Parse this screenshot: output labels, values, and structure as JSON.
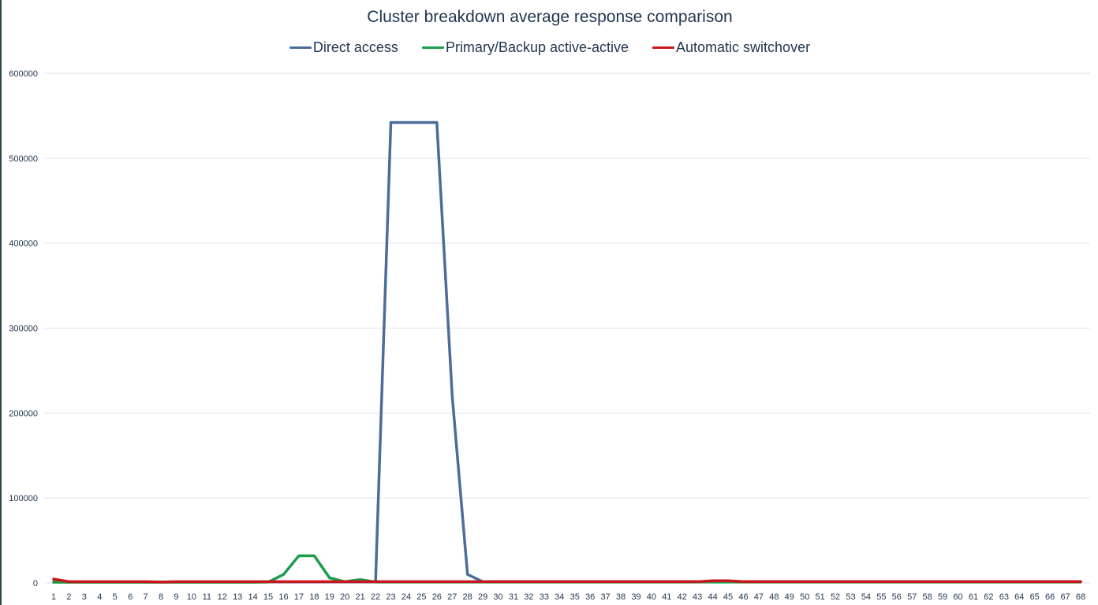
{
  "chart_data": {
    "type": "line",
    "title": "Cluster breakdown average response comparison",
    "xlabel": "",
    "ylabel": "",
    "ylim": [
      0,
      600000
    ],
    "yticks": [
      "0",
      "100000",
      "200000",
      "300000",
      "400000",
      "500000",
      "600000"
    ],
    "x": [
      1,
      2,
      3,
      4,
      5,
      6,
      7,
      8,
      9,
      10,
      11,
      12,
      13,
      14,
      15,
      16,
      17,
      18,
      19,
      20,
      21,
      22,
      23,
      24,
      25,
      26,
      27,
      28,
      29,
      30,
      31,
      32,
      33,
      34,
      35,
      36,
      37,
      38,
      39,
      40,
      41,
      42,
      43,
      44,
      45,
      46,
      47,
      48,
      49,
      50,
      51,
      52,
      53,
      54,
      55,
      56,
      57,
      58,
      59,
      60,
      61,
      62,
      63,
      64,
      65,
      66,
      67,
      68
    ],
    "grid": true,
    "legend_position": "top",
    "series": [
      {
        "name": "Direct access",
        "color": "#4a6d99",
        "values": [
          1500,
          1200,
          1200,
          1200,
          1200,
          1200,
          1200,
          1200,
          1200,
          1200,
          1200,
          1200,
          1200,
          1200,
          1200,
          1200,
          1200,
          1200,
          1200,
          1200,
          1200,
          1200,
          542000,
          542000,
          542000,
          542000,
          220000,
          10000,
          1500,
          1500,
          1500,
          1500,
          1500,
          1500,
          1500,
          1500,
          1500,
          1500,
          1500,
          1500,
          1500,
          1500,
          1500,
          1500,
          1500,
          1500,
          1500,
          1500,
          1500,
          1500,
          1500,
          1500,
          1500,
          1500,
          1500,
          1500,
          1500,
          1500,
          1500,
          1500,
          1500,
          1500,
          1500,
          1500,
          1500,
          1500,
          1500,
          1500
        ]
      },
      {
        "name": "Primary/Backup active-active",
        "color": "#1a9e4a",
        "values": [
          800,
          800,
          800,
          800,
          800,
          800,
          800,
          800,
          800,
          800,
          800,
          800,
          800,
          800,
          1000,
          10000,
          32000,
          32000,
          6000,
          1500,
          4000,
          1000,
          1000,
          1000,
          1000,
          1000,
          1000,
          1000,
          1000,
          1000,
          1000,
          1000,
          1000,
          1000,
          1000,
          1000,
          1000,
          1000,
          1000,
          1000,
          1000,
          1000,
          1000,
          1000,
          1000,
          1000,
          1000,
          1000,
          1000,
          1000,
          1000,
          1000,
          1000,
          1000,
          1000,
          1000,
          1000,
          1000,
          1000,
          1000,
          1000,
          1000,
          1000,
          1000,
          1000,
          1000,
          1000,
          1000
        ]
      },
      {
        "name": "Automatic switchover",
        "color": "#c8161d",
        "values": [
          4500,
          1500,
          1500,
          1500,
          1500,
          1500,
          1500,
          1000,
          1500,
          1500,
          1500,
          1500,
          1500,
          1500,
          1500,
          1500,
          1500,
          1500,
          1500,
          1500,
          1500,
          1500,
          1500,
          1500,
          1500,
          1500,
          1500,
          1500,
          1500,
          1500,
          1500,
          1500,
          1500,
          1500,
          1500,
          1500,
          1500,
          1500,
          1500,
          1500,
          1500,
          1500,
          1500,
          2500,
          2500,
          1500,
          1500,
          1500,
          1500,
          1500,
          1500,
          1500,
          1500,
          1500,
          1500,
          1500,
          1500,
          1500,
          1500,
          1500,
          1500,
          1500,
          1500,
          1500,
          1500,
          1500,
          1500,
          1500
        ]
      }
    ]
  }
}
